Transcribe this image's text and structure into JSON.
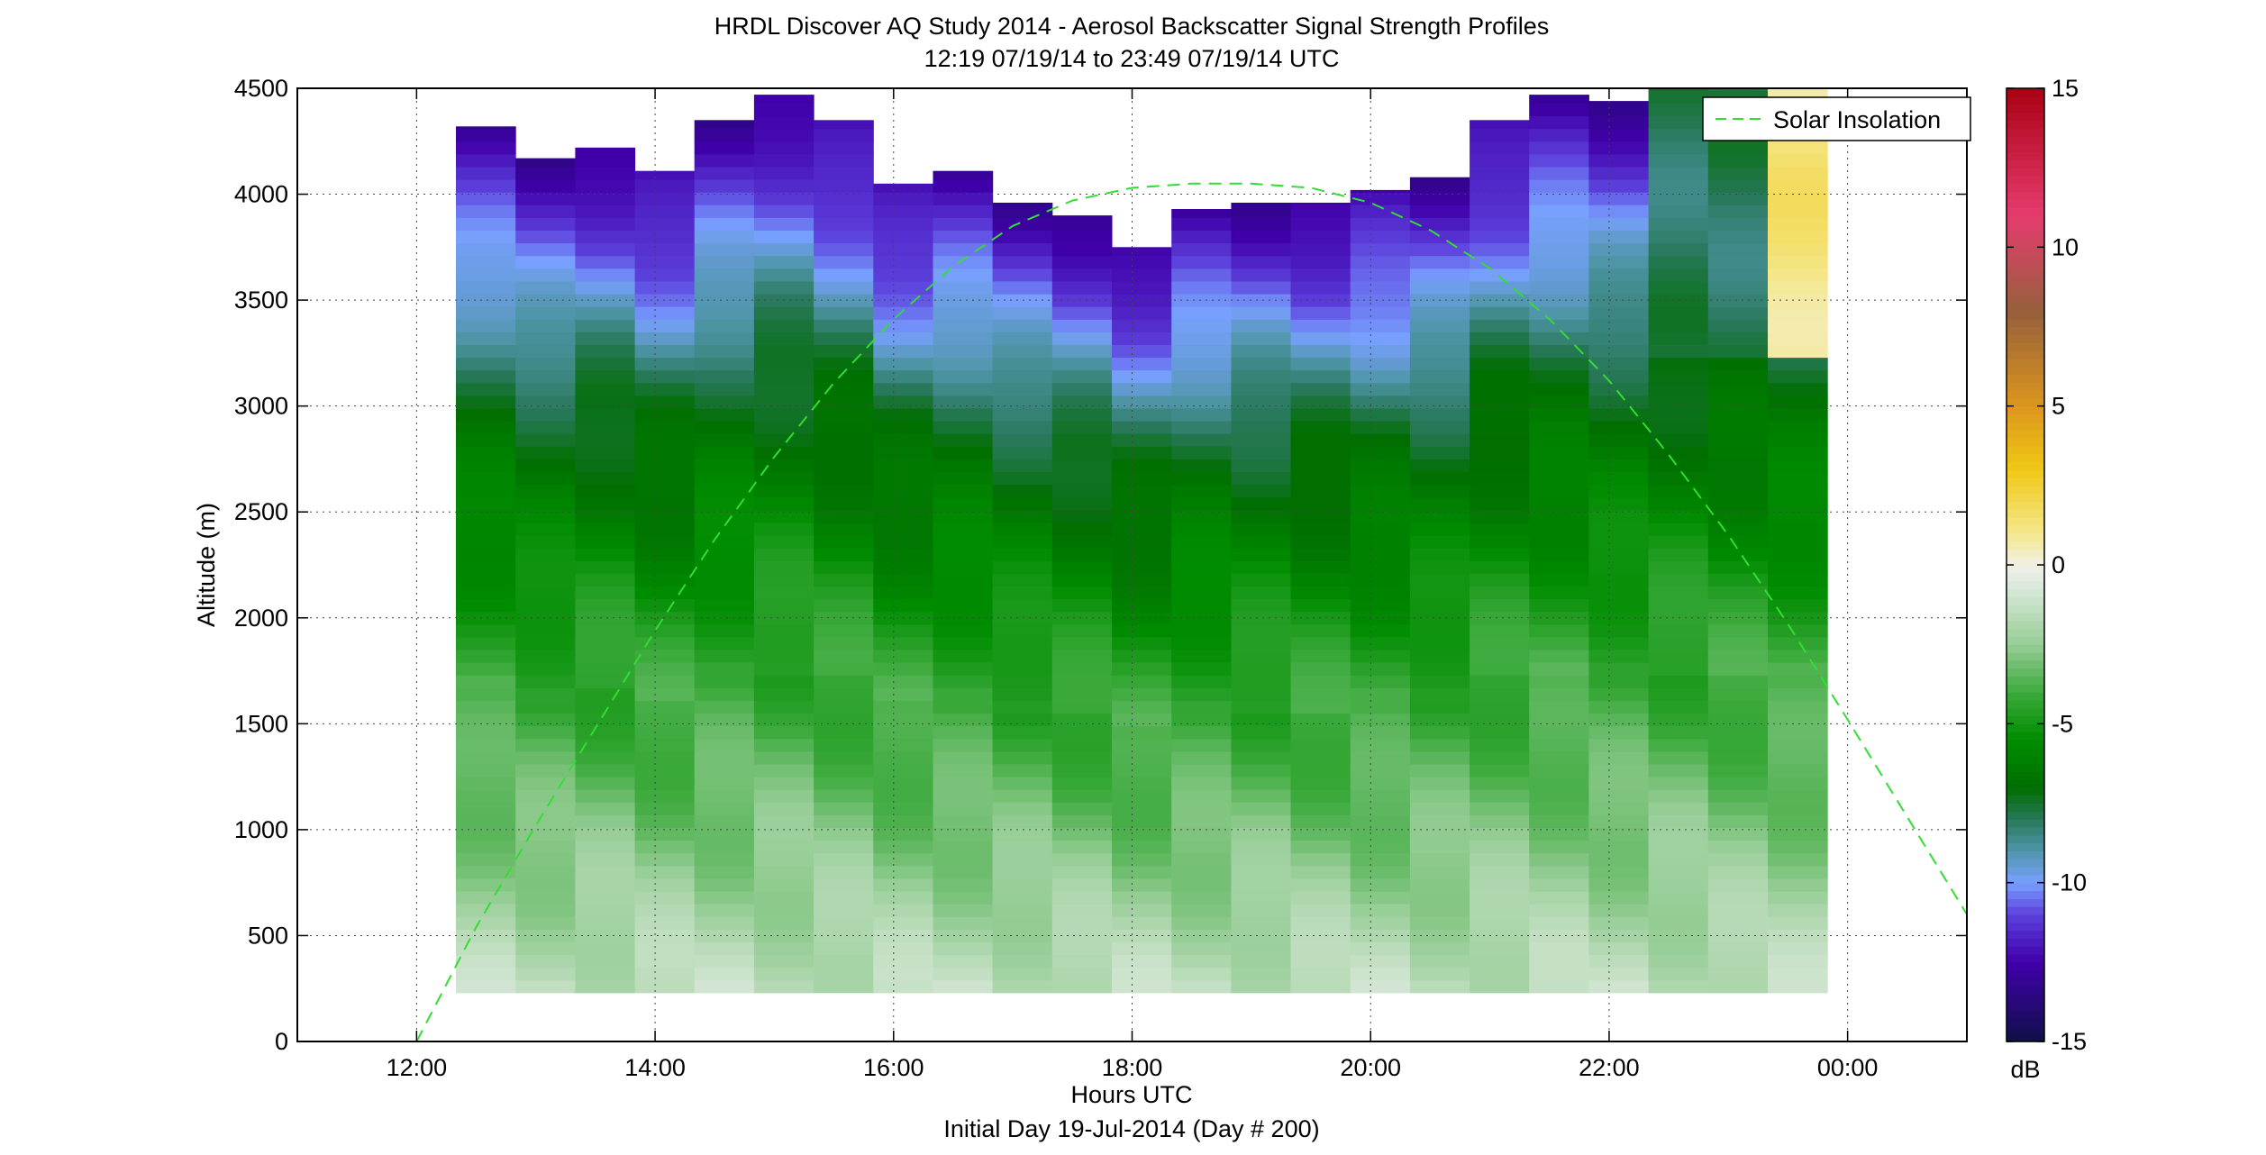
{
  "chart_data": {
    "type": "heatmap",
    "title": "HRDL Discover AQ Study 2014 - Aerosol Backscatter Signal Strength Profiles",
    "subtitle": "12:19 07/19/14 to 23:49 07/19/14  UTC",
    "xlabel": "Hours UTC",
    "xlabel2": "Initial Day 19-Jul-2014 (Day # 200)",
    "ylabel": "Altitude (m)",
    "xlim": [
      11.0,
      25.0
    ],
    "ylim": [
      0,
      4500
    ],
    "grid": true,
    "x_ticks": [
      {
        "value": 12,
        "label": "12:00"
      },
      {
        "value": 14,
        "label": "14:00"
      },
      {
        "value": 16,
        "label": "16:00"
      },
      {
        "value": 18,
        "label": "18:00"
      },
      {
        "value": 20,
        "label": "20:00"
      },
      {
        "value": 22,
        "label": "22:00"
      },
      {
        "value": 24,
        "label": "00:00"
      }
    ],
    "y_ticks": [
      0,
      500,
      1000,
      1500,
      2000,
      2500,
      3000,
      3500,
      4000,
      4500
    ],
    "colorbar": {
      "range": [
        -15,
        15
      ],
      "ticks": [
        -15,
        -10,
        -5,
        0,
        5,
        10,
        15
      ],
      "unit_label": "dB",
      "position": "right"
    },
    "columns": [
      {
        "x": 12.33,
        "top": 4320,
        "bottom": 230
      },
      {
        "x": 12.83,
        "top": 4170,
        "bottom": 230
      },
      {
        "x": 13.33,
        "top": 4220,
        "bottom": 230
      },
      {
        "x": 13.83,
        "top": 4110,
        "bottom": 230
      },
      {
        "x": 14.33,
        "top": 4350,
        "bottom": 230
      },
      {
        "x": 14.83,
        "top": 4470,
        "bottom": 230
      },
      {
        "x": 15.33,
        "top": 4350,
        "bottom": 230
      },
      {
        "x": 15.83,
        "top": 4050,
        "bottom": 230
      },
      {
        "x": 16.33,
        "top": 4110,
        "bottom": 230
      },
      {
        "x": 16.83,
        "top": 3960,
        "bottom": 230
      },
      {
        "x": 17.33,
        "top": 3900,
        "bottom": 230
      },
      {
        "x": 17.83,
        "top": 3750,
        "bottom": 230
      },
      {
        "x": 18.33,
        "top": 3930,
        "bottom": 230
      },
      {
        "x": 18.83,
        "top": 3960,
        "bottom": 230
      },
      {
        "x": 19.33,
        "top": 3960,
        "bottom": 230
      },
      {
        "x": 19.83,
        "top": 4020,
        "bottom": 230
      },
      {
        "x": 20.33,
        "top": 4080,
        "bottom": 230
      },
      {
        "x": 20.83,
        "top": 4350,
        "bottom": 230
      },
      {
        "x": 21.33,
        "top": 4470,
        "bottom": 230
      },
      {
        "x": 21.83,
        "top": 4440,
        "bottom": 230
      },
      {
        "x": 22.33,
        "top": 4500,
        "bottom": 230
      },
      {
        "x": 22.83,
        "top": 4500,
        "bottom": 230
      },
      {
        "x": 23.33,
        "top": 4500,
        "bottom": 230
      }
    ],
    "column_width_hours": 0.5,
    "series": [
      {
        "name": "Solar Insolation",
        "style": "dashed",
        "color": "#33dd33",
        "x": [
          12.0,
          12.5,
          13.0,
          13.5,
          14.0,
          14.5,
          15.0,
          15.5,
          16.0,
          16.5,
          17.0,
          17.5,
          18.0,
          18.5,
          19.0,
          19.5,
          20.0,
          20.5,
          21.0,
          21.5,
          22.0,
          22.5,
          23.0,
          23.5,
          24.0,
          24.5,
          25.0
        ],
        "y": [
          0,
          540,
          1020,
          1480,
          1940,
          2370,
          2760,
          3110,
          3410,
          3660,
          3850,
          3970,
          4030,
          4050,
          4050,
          4030,
          3960,
          3830,
          3650,
          3410,
          3120,
          2770,
          2390,
          1970,
          1520,
          1060,
          600
        ]
      }
    ],
    "legend": {
      "entries": [
        "Solar Insolation"
      ],
      "position": "top-right"
    }
  }
}
